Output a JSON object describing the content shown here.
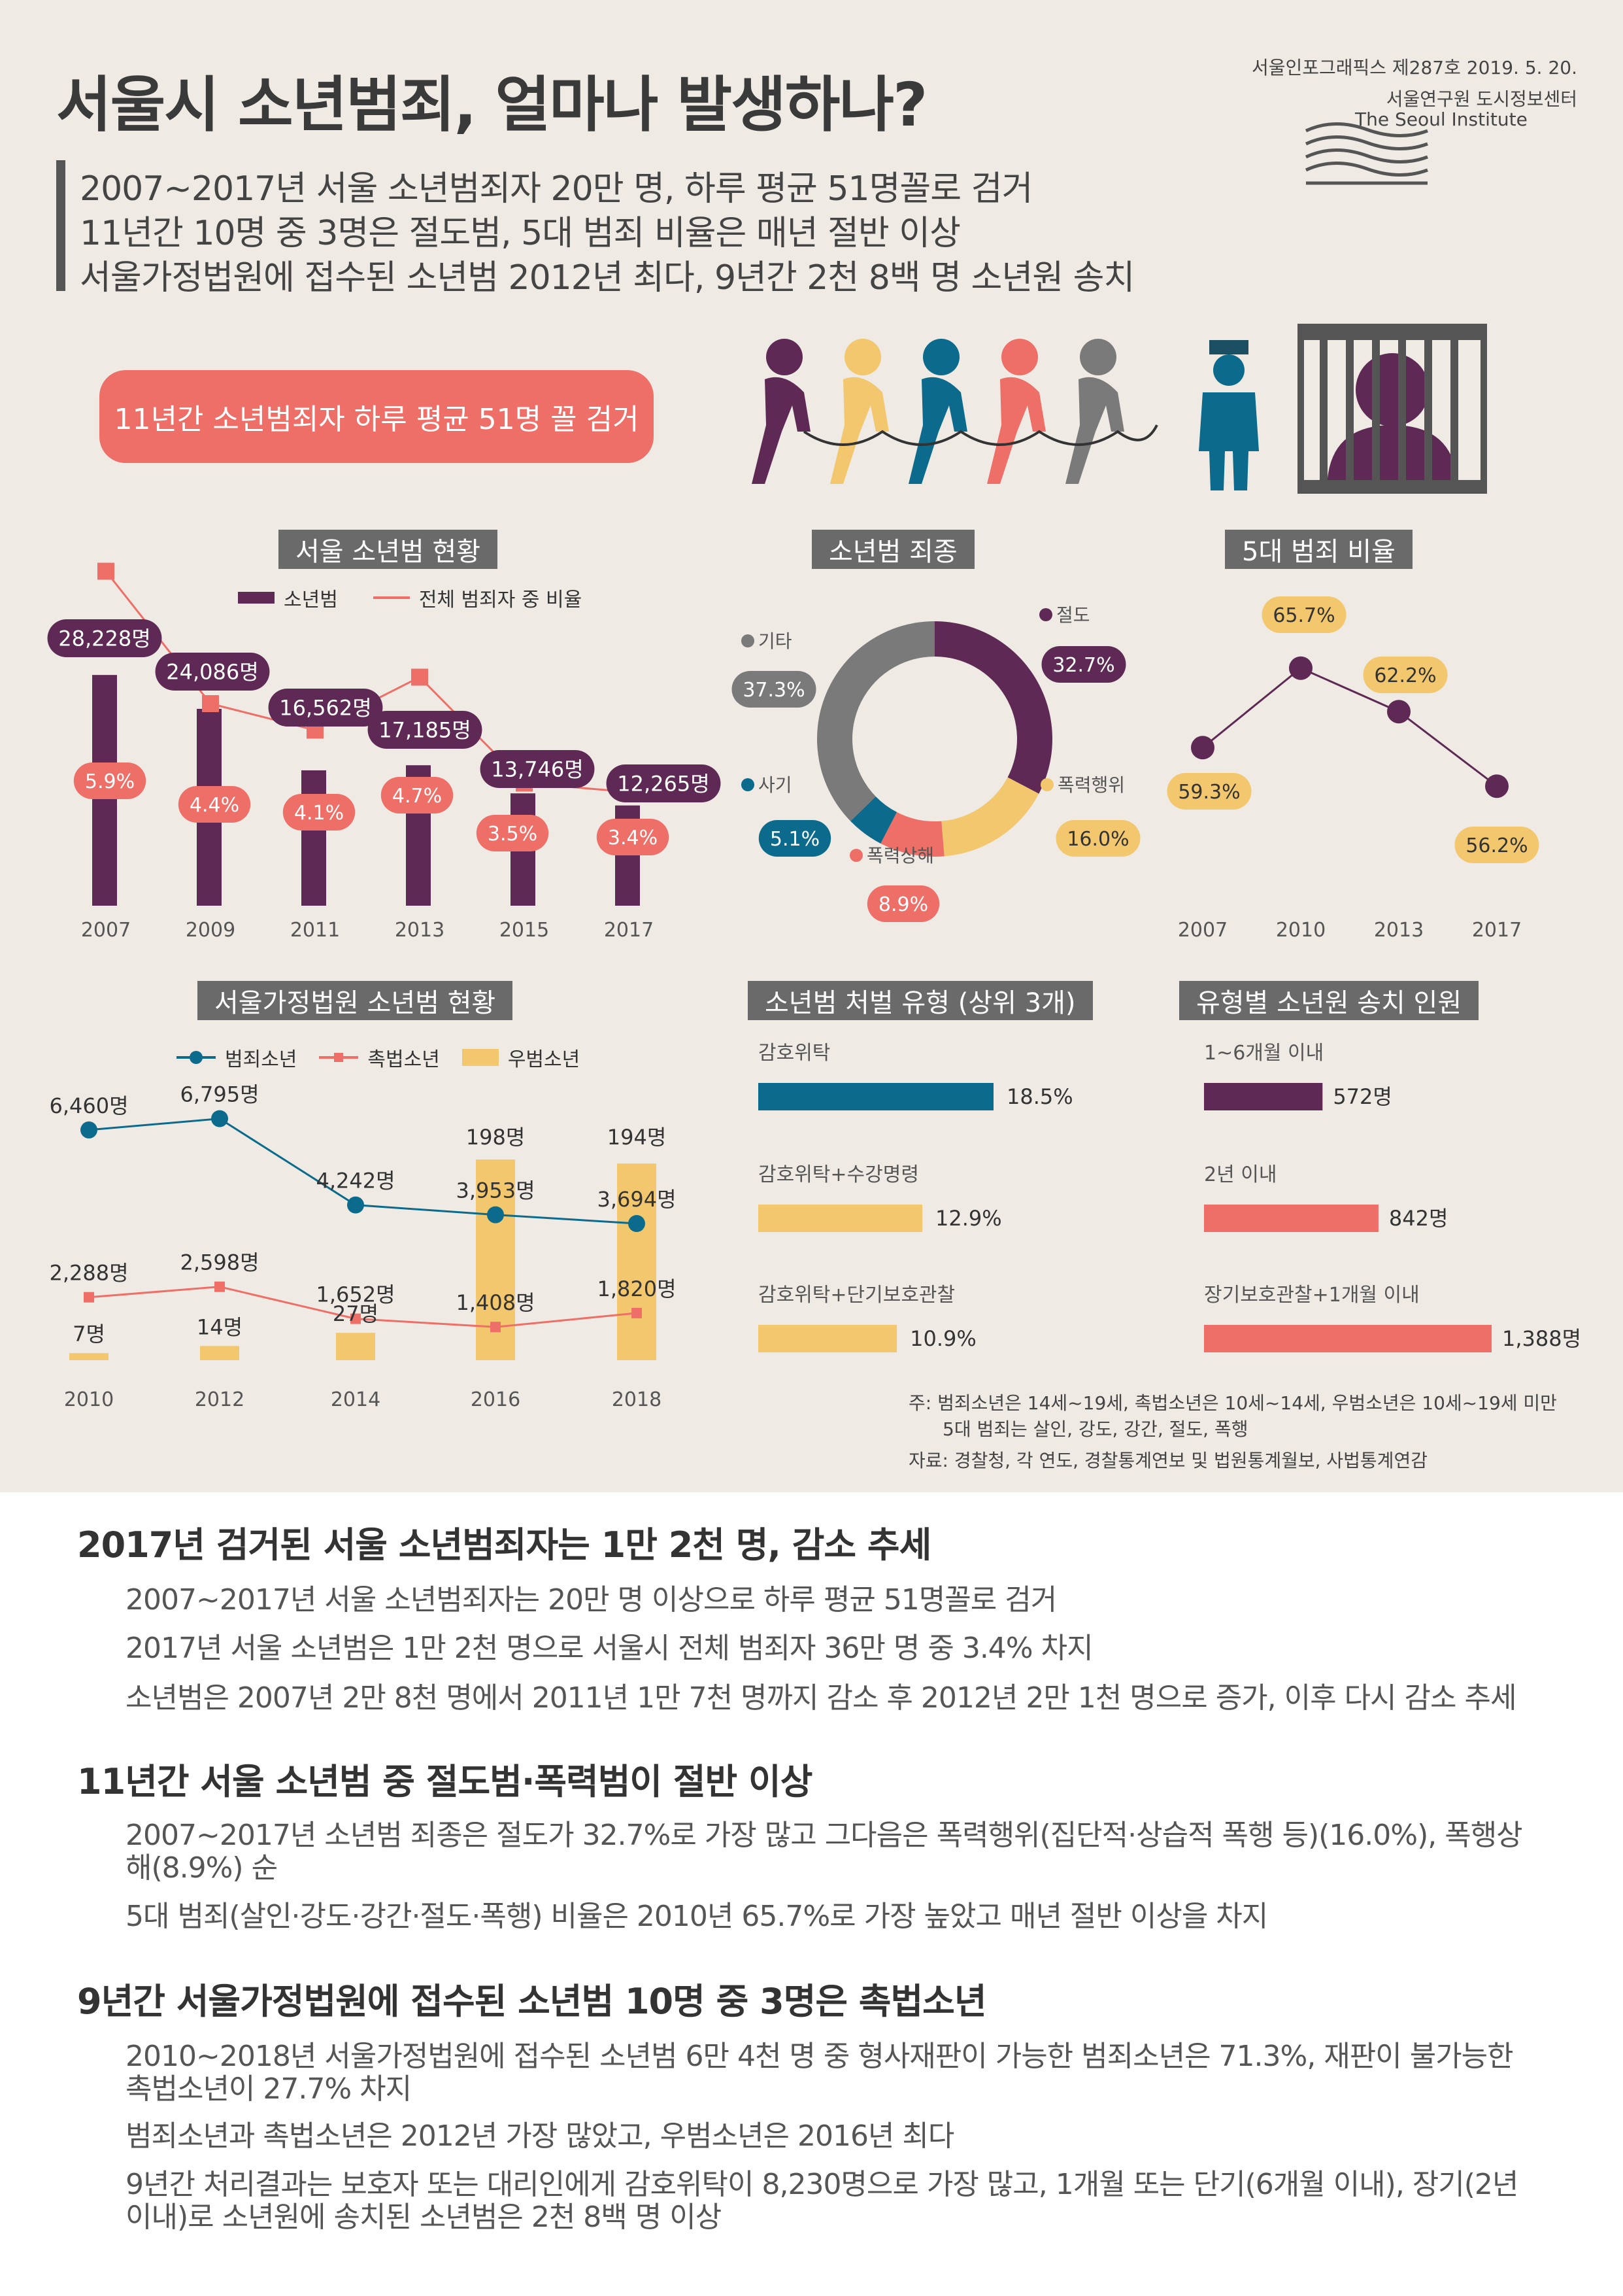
{
  "header": {
    "title": "서울시 소년범죄, 얼마나 발생하나?",
    "issue": "서울인포그래픽스 제287호 2019. 5. 20.",
    "org_kr": "서울연구원 도시정보센터",
    "org_en": "The Seoul Institute",
    "logo_icon": "seoul-institute-logo-icon"
  },
  "subtitles": [
    "2007~2017년 서울 소년범죄자 20만 명, 하루 평균 51명꼴로 검거",
    "11년간 10명 중 3명은 절도범, 5대 범죄 비율은 매년 절반 이상",
    "서울가정법원에 접수된 소년범 2012년 최다, 9년간 2천 8백 명 소년원 송치"
  ],
  "highlight": "11년간 소년범죄자 하루 평균 51명 꼴 검거",
  "icons": [
    "chained-prisoners-icon",
    "police-officer-icon",
    "jail-bars-icon"
  ],
  "colors": {
    "purple": "#5e2a55",
    "coral": "#ee6f67",
    "teal": "#0c6b8c",
    "yellow": "#f2c76e",
    "gray": "#7a7a7a",
    "bg": "#efebe4"
  },
  "chart_data": [
    {
      "id": "juvenile-status",
      "type": "bar",
      "title": "서울 소년범 현황",
      "legend": [
        "소년범",
        "전체 범죄자 중 비율"
      ],
      "categories": [
        "2007",
        "2009",
        "2011",
        "2013",
        "2015",
        "2017"
      ],
      "series": [
        {
          "name": "소년범",
          "values": [
            28228,
            24086,
            16562,
            17185,
            13746,
            12265
          ],
          "labels": [
            "28,228명",
            "24,086명",
            "16,562명",
            "17,185명",
            "13,746명",
            "12,265명"
          ]
        },
        {
          "name": "전체 범죄자 중 비율",
          "values": [
            5.9,
            4.4,
            4.1,
            4.7,
            3.5,
            3.4
          ],
          "labels": [
            "5.9%",
            "4.4%",
            "4.1%",
            "4.7%",
            "3.5%",
            "3.4%"
          ]
        }
      ],
      "ylim": [
        0,
        30000
      ]
    },
    {
      "id": "crime-types",
      "type": "pie",
      "title": "소년범 죄종",
      "slices": [
        {
          "label": "절도",
          "value": 32.7,
          "text": "32.7%"
        },
        {
          "label": "폭력행위",
          "value": 16.0,
          "text": "16.0%"
        },
        {
          "label": "폭력상해",
          "value": 8.9,
          "text": "8.9%"
        },
        {
          "label": "사기",
          "value": 5.1,
          "text": "5.1%"
        },
        {
          "label": "기타",
          "value": 37.3,
          "text": "37.3%"
        }
      ]
    },
    {
      "id": "five-crimes",
      "type": "line",
      "title": "5대 범죄 비율",
      "categories": [
        "2007",
        "2010",
        "2013",
        "2017"
      ],
      "values": [
        59.3,
        65.7,
        62.2,
        56.2
      ],
      "labels": [
        "59.3%",
        "65.7%",
        "62.2%",
        "56.2%"
      ],
      "ylim": [
        50,
        70
      ]
    },
    {
      "id": "family-court",
      "type": "line",
      "title": "서울가정법원 소년범 현황",
      "legend": [
        "범죄소년",
        "촉법소년",
        "우범소년"
      ],
      "categories": [
        "2010",
        "2012",
        "2014",
        "2016",
        "2018"
      ],
      "series": [
        {
          "name": "범죄소년",
          "values": [
            6460,
            6795,
            4242,
            3953,
            3694
          ],
          "labels": [
            "6,460명",
            "6,795명",
            "4,242명",
            "3,953명",
            "3,694명"
          ]
        },
        {
          "name": "촉법소년",
          "values": [
            2288,
            2598,
            1652,
            1408,
            1820
          ],
          "labels": [
            "2,288명",
            "2,598명",
            "1,652명",
            "1,408명",
            "1,820명"
          ]
        },
        {
          "name": "우범소년",
          "values": [
            7,
            14,
            27,
            198,
            194
          ],
          "labels": [
            "7명",
            "14명",
            "27명",
            "198명",
            "194명"
          ]
        }
      ]
    },
    {
      "id": "disposition",
      "type": "bar",
      "title": "소년범 처벌 유형 (상위 3개)",
      "categories": [
        "감호위탁",
        "감호위탁+수강명령",
        "감호위탁+단기보호관찰"
      ],
      "values": [
        18.5,
        12.9,
        10.9
      ],
      "labels": [
        "18.5%",
        "12.9%",
        "10.9%"
      ]
    },
    {
      "id": "detention",
      "type": "bar",
      "title": "유형별 소년원 송치 인원",
      "categories": [
        "1~6개월 이내",
        "2년 이내",
        "장기보호관찰+1개월 이내"
      ],
      "values": [
        572,
        842,
        1388
      ],
      "labels": [
        "572명",
        "842명",
        "1,388명"
      ]
    }
  ],
  "notes": {
    "note1": "주: 범죄소년은 14세~19세, 촉법소년은 10세~14세, 우범소년은 10세~19세 미만",
    "note2": "5대 범죄는 살인, 강도, 강간, 절도, 폭행",
    "source": "자료: 경찰청, 각 연도, 경찰통계연보 및 법원통계월보, 사법통계연감"
  },
  "sections": [
    {
      "heading": "2017년 검거된 서울 소년범죄자는 1만 2천 명, 감소 추세",
      "paragraphs": [
        "2007~2017년 서울 소년범죄자는 20만 명 이상으로 하루 평균 51명꼴로 검거",
        "2017년 서울 소년범은 1만 2천 명으로 서울시 전체 범죄자 36만 명 중 3.4% 차지",
        "소년범은 2007년 2만 8천 명에서 2011년 1만 7천 명까지 감소 후 2012년 2만 1천 명으로 증가, 이후 다시 감소 추세"
      ]
    },
    {
      "heading": "11년간 서울 소년범 중 절도범·폭력범이 절반 이상",
      "paragraphs": [
        "2007~2017년 소년범 죄종은 절도가 32.7%로 가장 많고 그다음은 폭력행위(집단적·상습적 폭행 등)(16.0%), 폭행상해(8.9%) 순",
        "5대 범죄(살인·강도·강간·절도·폭행) 비율은 2010년 65.7%로 가장 높았고 매년 절반 이상을 차지"
      ]
    },
    {
      "heading": "9년간 서울가정법원에 접수된 소년범 10명 중 3명은 촉법소년",
      "paragraphs": [
        "2010~2018년 서울가정법원에 접수된 소년범 6만 4천 명 중 형사재판이 가능한 범죄소년은 71.3%, 재판이 불가능한 촉법소년이 27.7% 차지",
        "범죄소년과 촉법소년은 2012년 가장 많았고, 우범소년은 2016년 최다",
        "9년간 처리결과는 보호자 또는 대리인에게 감호위탁이 8,230명으로 가장 많고, 1개월 또는 단기(6개월 이내), 장기(2년 이내)로 소년원에 송치된 소년범은 2천 8백 명 이상"
      ]
    }
  ]
}
